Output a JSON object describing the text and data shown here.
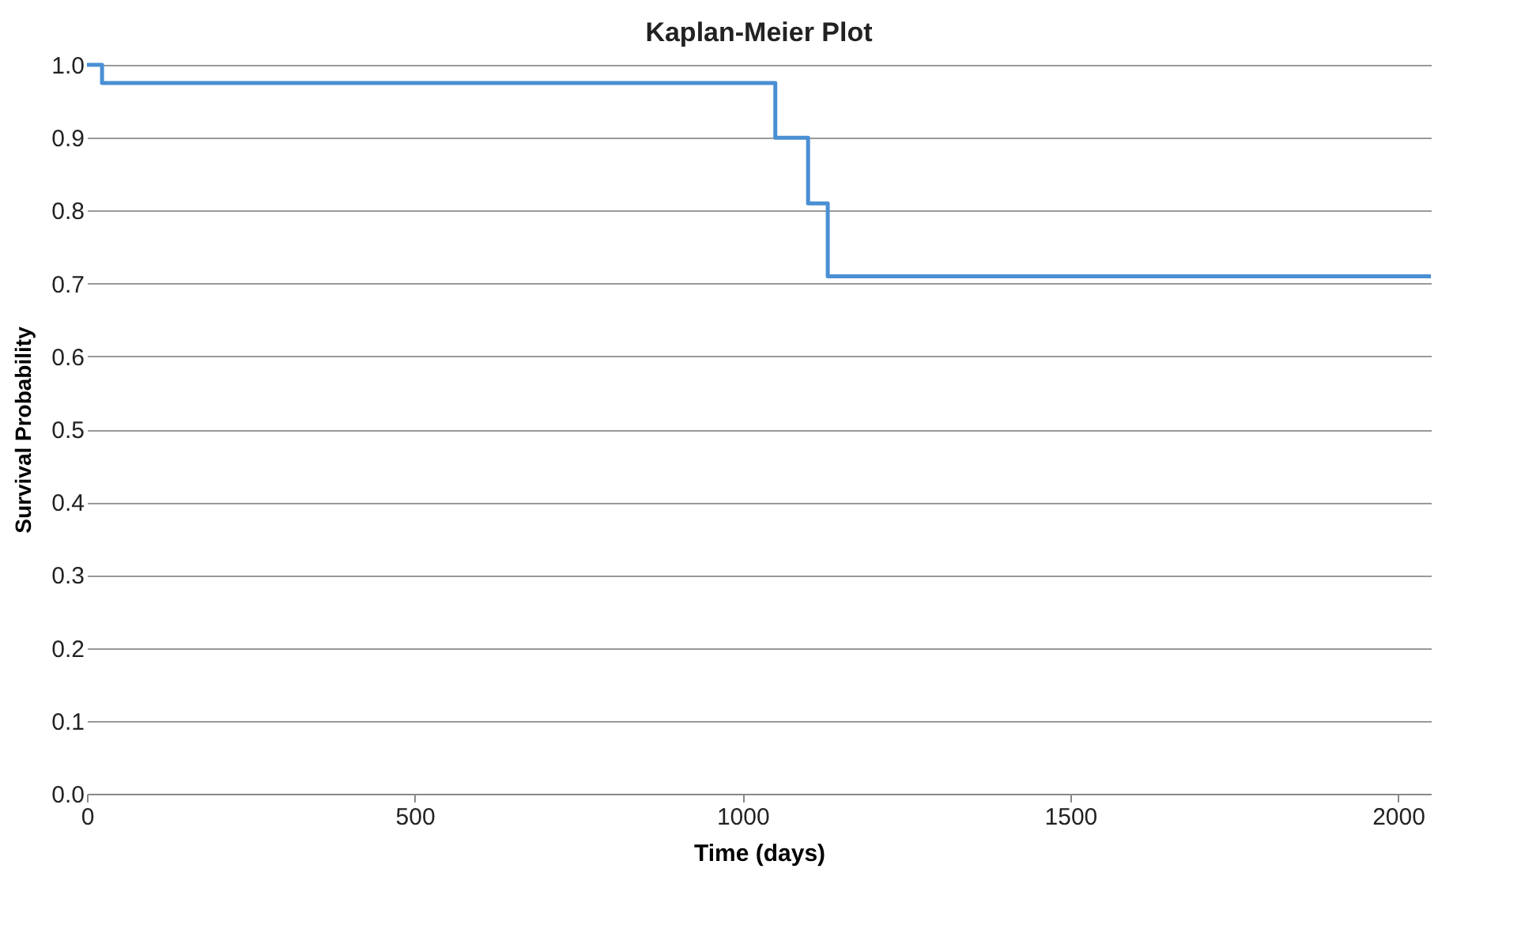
{
  "chart_data": {
    "type": "step",
    "title": "Kaplan-Meier Plot",
    "xlabel": "Time (days)",
    "ylabel": "Survival Probability",
    "x": [
      0,
      23,
      1050,
      1100,
      1130,
      2050
    ],
    "series": [
      {
        "color": "#4a8fd4",
        "values": [
          1.0,
          0.975,
          0.9,
          0.81,
          0.71,
          0.71
        ]
      }
    ],
    "xlim": [
      0,
      2050
    ],
    "xticks": [
      0,
      500,
      1000,
      1500,
      2000
    ],
    "ylim": [
      0,
      1
    ],
    "yticks": [
      {
        "value": 0,
        "label": "0.0"
      },
      0.1,
      0.2,
      0.3,
      0.4,
      0.5,
      0.6,
      0.7,
      0.8,
      0.9,
      {
        "value": 1,
        "label": "1.0"
      }
    ],
    "grid": "y",
    "marker": "none",
    "line_style": "solid"
  }
}
